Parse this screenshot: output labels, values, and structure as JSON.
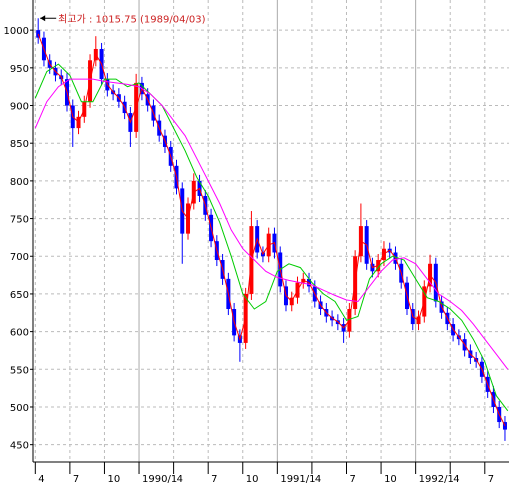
{
  "chart_data": {
    "type": "candlestick",
    "annotation": "최고가 : 1015.75 (1989/04/03)",
    "up_color": "#ff0000",
    "down_color": "#0000ff",
    "grid": true,
    "xlim": [
      -0.2,
      41.1
    ],
    "ylim": [
      427,
      1040
    ],
    "yticks": [
      450,
      500,
      550,
      600,
      650,
      700,
      750,
      800,
      850,
      900,
      950,
      1000
    ],
    "xticks": [
      {
        "value": 0,
        "label": "4"
      },
      {
        "value": 3,
        "label": "7"
      },
      {
        "value": 6,
        "label": "10"
      },
      {
        "value": 9,
        "label": "1990/1"
      },
      {
        "value": 12,
        "label": "4"
      },
      {
        "value": 15,
        "label": "7"
      },
      {
        "value": 18,
        "label": "10"
      },
      {
        "value": 21,
        "label": "1991/1"
      },
      {
        "value": 24,
        "label": "4"
      },
      {
        "value": 27,
        "label": "7"
      },
      {
        "value": 30,
        "label": "10"
      },
      {
        "value": 33,
        "label": "1992/1"
      },
      {
        "value": 36,
        "label": "4"
      },
      {
        "value": 39,
        "label": "7"
      }
    ],
    "x": [
      0.25,
      0.75,
      1.25,
      1.75,
      2.25,
      2.75,
      3.25,
      3.75,
      4.25,
      4.75,
      5.25,
      5.75,
      6.25,
      6.75,
      7.25,
      7.75,
      8.25,
      8.75,
      9.25,
      9.75,
      10.25,
      10.75,
      11.25,
      11.75,
      12.25,
      12.75,
      13.25,
      13.75,
      14.25,
      14.75,
      15.25,
      15.75,
      16.25,
      16.75,
      17.25,
      17.75,
      18.25,
      18.75,
      19.25,
      19.75,
      20.25,
      20.75,
      21.25,
      21.75,
      22.25,
      22.75,
      23.25,
      23.75,
      24.25,
      24.75,
      25.25,
      25.75,
      26.25,
      26.75,
      27.25,
      27.75,
      28.25,
      28.75,
      29.25,
      29.75,
      30.25,
      30.75,
      31.25,
      31.75,
      32.25,
      32.75,
      33.25,
      33.75,
      34.25,
      34.75,
      35.25,
      35.75,
      36.25,
      36.75,
      37.25,
      37.75,
      38.25,
      38.75,
      39.25,
      39.75,
      40.25,
      40.75
    ],
    "open": [
      1000,
      990,
      960,
      950,
      940,
      935,
      900,
      870,
      885,
      905,
      960,
      975,
      935,
      920,
      915,
      905,
      890,
      865,
      930,
      915,
      900,
      880,
      860,
      845,
      820,
      790,
      730,
      770,
      800,
      780,
      755,
      720,
      695,
      670,
      630,
      595,
      585,
      650,
      740,
      705,
      700,
      730,
      705,
      660,
      635,
      645,
      665,
      670,
      660,
      640,
      630,
      620,
      615,
      610,
      600,
      630,
      700,
      740,
      690,
      680,
      695,
      710,
      705,
      690,
      665,
      630,
      610,
      620,
      660,
      690,
      640,
      625,
      610,
      595,
      590,
      575,
      565,
      560,
      540,
      520,
      500,
      480
    ],
    "high": [
      1015.75,
      998,
      968,
      958,
      948,
      943,
      908,
      893,
      913,
      968,
      992,
      983,
      943,
      928,
      923,
      913,
      898,
      942,
      938,
      923,
      908,
      888,
      868,
      853,
      828,
      798,
      778,
      810,
      808,
      788,
      763,
      728,
      703,
      678,
      638,
      603,
      658,
      760,
      748,
      713,
      738,
      738,
      713,
      668,
      653,
      673,
      678,
      678,
      668,
      648,
      638,
      628,
      623,
      618,
      638,
      708,
      770,
      748,
      698,
      703,
      720,
      718,
      713,
      698,
      673,
      638,
      628,
      668,
      702,
      698,
      648,
      633,
      618,
      603,
      598,
      583,
      573,
      568,
      548,
      528,
      508,
      488
    ],
    "low": [
      982,
      952,
      942,
      932,
      927,
      892,
      845,
      862,
      877,
      897,
      952,
      927,
      912,
      907,
      897,
      882,
      845,
      857,
      907,
      892,
      872,
      852,
      837,
      812,
      782,
      690,
      722,
      762,
      772,
      747,
      712,
      687,
      662,
      622,
      587,
      560,
      577,
      642,
      697,
      692,
      692,
      697,
      652,
      627,
      627,
      637,
      657,
      652,
      632,
      622,
      612,
      607,
      602,
      585,
      592,
      622,
      692,
      682,
      672,
      672,
      687,
      697,
      682,
      657,
      622,
      602,
      602,
      612,
      652,
      632,
      617,
      602,
      587,
      582,
      567,
      557,
      552,
      532,
      512,
      492,
      472,
      455
    ],
    "close": [
      990,
      960,
      950,
      940,
      935,
      900,
      870,
      885,
      905,
      960,
      975,
      935,
      920,
      915,
      905,
      890,
      865,
      930,
      915,
      900,
      880,
      860,
      845,
      820,
      790,
      730,
      770,
      800,
      780,
      755,
      720,
      695,
      670,
      630,
      595,
      585,
      650,
      740,
      705,
      700,
      730,
      705,
      660,
      635,
      645,
      665,
      670,
      660,
      640,
      630,
      620,
      615,
      610,
      600,
      630,
      700,
      740,
      690,
      680,
      695,
      710,
      705,
      690,
      665,
      630,
      610,
      620,
      660,
      690,
      640,
      625,
      610,
      595,
      590,
      575,
      565,
      560,
      540,
      520,
      500,
      480,
      470
    ],
    "series": [
      {
        "color": "#ff0000",
        "x": [
          0.25,
          0.75,
          1.25,
          1.75,
          2.25,
          2.75,
          3.25,
          3.75,
          4.25,
          4.75,
          5.25,
          5.75,
          6.25,
          6.75,
          7.25,
          7.75,
          8.25,
          8.75,
          9.25,
          9.75,
          10.25,
          10.75,
          11.25,
          11.75,
          12.25,
          12.75,
          13.25,
          13.75,
          14.25,
          14.75,
          15.25,
          15.75,
          16.25,
          16.75,
          17.25,
          17.75,
          18.25,
          18.75,
          19.25,
          19.75,
          20.25,
          20.75,
          21.25,
          21.75,
          22.25,
          22.75,
          23.25,
          23.75,
          24.25,
          24.75,
          25.25,
          25.75,
          26.25,
          26.75,
          27.25,
          27.75,
          28.25,
          28.75,
          29.25,
          29.75,
          30.25,
          30.75,
          31.25,
          31.75,
          32.25,
          32.75,
          33.25,
          33.75,
          34.25,
          34.75,
          35.25,
          35.75,
          36.25,
          36.75,
          37.25,
          37.75,
          38.25,
          38.75,
          39.25,
          39.75,
          40.25,
          40.75
        ],
        "values": [
          995,
          975,
          955,
          945,
          938,
          918,
          885,
          878,
          895,
          933,
          968,
          955,
          928,
          918,
          910,
          898,
          878,
          898,
          923,
          908,
          890,
          870,
          853,
          833,
          805,
          760,
          750,
          785,
          790,
          768,
          738,
          708,
          683,
          650,
          613,
          590,
          618,
          695,
          723,
          703,
          715,
          718,
          683,
          648,
          640,
          655,
          668,
          665,
          650,
          635,
          625,
          618,
          613,
          605,
          615,
          665,
          720,
          715,
          685,
          688,
          703,
          708,
          698,
          678,
          648,
          620,
          615,
          640,
          675,
          665,
          633,
          618,
          603,
          593,
          583,
          570,
          563,
          550,
          530,
          510,
          490,
          475
        ]
      },
      {
        "color": "#00cc00",
        "x": [
          0,
          1,
          2,
          3,
          4,
          5,
          6,
          7,
          8,
          9,
          10,
          11,
          12,
          13,
          14,
          15,
          16,
          17,
          18,
          19,
          20,
          21,
          22,
          23,
          24,
          25,
          26,
          27,
          28,
          29,
          30,
          31,
          32,
          33,
          34,
          35,
          36,
          37,
          38,
          39,
          40,
          41
        ],
        "values": [
          910,
          945,
          955,
          940,
          905,
          905,
          935,
          935,
          925,
          930,
          915,
          900,
          870,
          840,
          805,
          780,
          745,
          700,
          650,
          630,
          640,
          680,
          690,
          685,
          665,
          650,
          640,
          615,
          620,
          670,
          690,
          700,
          695,
          670,
          645,
          640,
          630,
          615,
          590,
          560,
          515,
          495
        ]
      },
      {
        "color": "#ff00ff",
        "x": [
          0,
          1,
          2,
          3,
          4,
          5,
          6,
          7,
          8,
          9,
          10,
          11,
          12,
          13,
          14,
          15,
          16,
          17,
          18,
          19,
          20,
          21,
          22,
          23,
          24,
          25,
          26,
          27,
          28,
          29,
          30,
          31,
          32,
          33,
          34,
          35,
          36,
          37,
          38,
          39,
          40,
          41
        ],
        "values": [
          870,
          905,
          925,
          935,
          935,
          935,
          932,
          930,
          928,
          925,
          915,
          900,
          880,
          860,
          830,
          800,
          770,
          735,
          710,
          695,
          680,
          672,
          668,
          665,
          662,
          655,
          648,
          642,
          640,
          660,
          680,
          695,
          698,
          690,
          670,
          650,
          640,
          628,
          610,
          590,
          570,
          550
        ]
      }
    ]
  }
}
